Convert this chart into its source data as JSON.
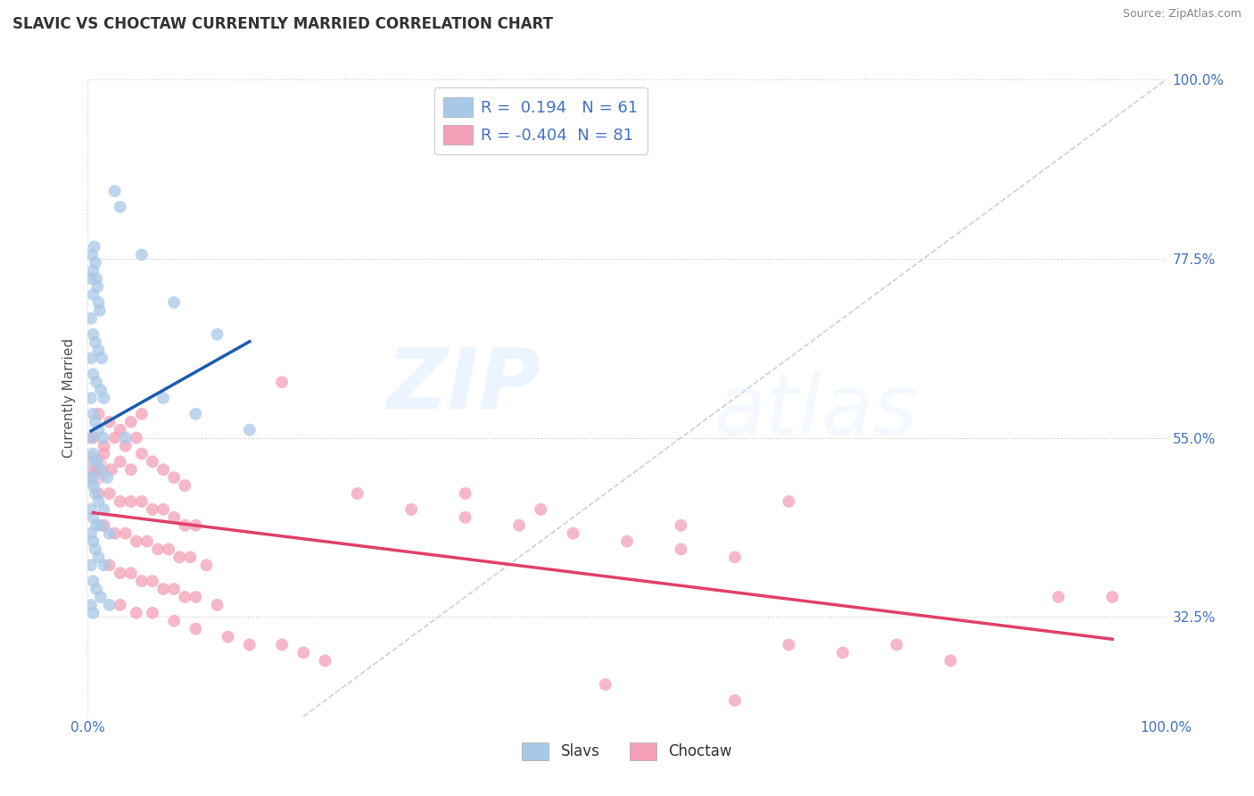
{
  "title": "SLAVIC VS CHOCTAW CURRENTLY MARRIED CORRELATION CHART",
  "source": "Source: ZipAtlas.com",
  "ylabel": "Currently Married",
  "xlim": [
    0.0,
    100.0
  ],
  "ylim": [
    20.0,
    100.0
  ],
  "ytick_values": [
    32.5,
    55.0,
    77.5,
    100.0
  ],
  "xtick_values": [
    0.0,
    100.0
  ],
  "slavs_R": 0.194,
  "slavs_N": 61,
  "choctaw_R": -0.404,
  "choctaw_N": 81,
  "slavs_color": "#a8c8e8",
  "choctaw_color": "#f4a0b8",
  "slavs_line_color": "#1a5cb0",
  "choctaw_line_color": "#e0406a",
  "diagonal_color": "#bbbbbb",
  "background_color": "#ffffff",
  "watermark_zip": "ZIP",
  "watermark_atlas": "atlas",
  "slavs_points": [
    [
      0.3,
      75.0
    ],
    [
      0.4,
      78.0
    ],
    [
      0.5,
      76.0
    ],
    [
      0.5,
      73.0
    ],
    [
      0.6,
      79.0
    ],
    [
      0.7,
      77.0
    ],
    [
      0.8,
      75.0
    ],
    [
      0.9,
      74.0
    ],
    [
      1.0,
      72.0
    ],
    [
      1.1,
      71.0
    ],
    [
      0.3,
      70.0
    ],
    [
      0.5,
      68.0
    ],
    [
      0.7,
      67.0
    ],
    [
      1.0,
      66.0
    ],
    [
      1.3,
      65.0
    ],
    [
      0.3,
      65.0
    ],
    [
      0.5,
      63.0
    ],
    [
      0.8,
      62.0
    ],
    [
      1.2,
      61.0
    ],
    [
      1.5,
      60.0
    ],
    [
      0.3,
      60.0
    ],
    [
      0.5,
      58.0
    ],
    [
      0.7,
      57.0
    ],
    [
      1.0,
      56.0
    ],
    [
      1.4,
      55.0
    ],
    [
      0.3,
      55.0
    ],
    [
      0.5,
      53.0
    ],
    [
      0.8,
      52.0
    ],
    [
      1.2,
      51.0
    ],
    [
      1.8,
      50.0
    ],
    [
      0.3,
      50.0
    ],
    [
      0.5,
      49.0
    ],
    [
      0.7,
      48.0
    ],
    [
      1.0,
      47.0
    ],
    [
      1.5,
      46.0
    ],
    [
      0.3,
      46.0
    ],
    [
      0.5,
      45.0
    ],
    [
      0.8,
      44.0
    ],
    [
      1.2,
      44.0
    ],
    [
      2.0,
      43.0
    ],
    [
      0.3,
      43.0
    ],
    [
      0.5,
      42.0
    ],
    [
      0.7,
      41.0
    ],
    [
      1.0,
      40.0
    ],
    [
      1.5,
      39.0
    ],
    [
      0.3,
      39.0
    ],
    [
      0.5,
      37.0
    ],
    [
      0.8,
      36.0
    ],
    [
      1.2,
      35.0
    ],
    [
      2.0,
      34.0
    ],
    [
      0.3,
      34.0
    ],
    [
      0.5,
      33.0
    ],
    [
      2.5,
      86.0
    ],
    [
      3.0,
      84.0
    ],
    [
      5.0,
      78.0
    ],
    [
      8.0,
      72.0
    ],
    [
      12.0,
      68.0
    ],
    [
      3.5,
      55.0
    ],
    [
      7.0,
      60.0
    ],
    [
      10.0,
      58.0
    ],
    [
      15.0,
      56.0
    ]
  ],
  "choctaw_points": [
    [
      0.5,
      55.0
    ],
    [
      1.0,
      58.0
    ],
    [
      1.5,
      54.0
    ],
    [
      2.0,
      57.0
    ],
    [
      2.5,
      55.0
    ],
    [
      3.0,
      56.0
    ],
    [
      3.5,
      54.0
    ],
    [
      4.0,
      57.0
    ],
    [
      4.5,
      55.0
    ],
    [
      5.0,
      58.0
    ],
    [
      0.8,
      51.0
    ],
    [
      1.5,
      53.0
    ],
    [
      2.2,
      51.0
    ],
    [
      3.0,
      52.0
    ],
    [
      4.0,
      51.0
    ],
    [
      5.0,
      53.0
    ],
    [
      6.0,
      52.0
    ],
    [
      7.0,
      51.0
    ],
    [
      8.0,
      50.0
    ],
    [
      9.0,
      49.0
    ],
    [
      1.0,
      48.0
    ],
    [
      2.0,
      48.0
    ],
    [
      3.0,
      47.0
    ],
    [
      4.0,
      47.0
    ],
    [
      5.0,
      47.0
    ],
    [
      6.0,
      46.0
    ],
    [
      7.0,
      46.0
    ],
    [
      8.0,
      45.0
    ],
    [
      9.0,
      44.0
    ],
    [
      10.0,
      44.0
    ],
    [
      1.5,
      44.0
    ],
    [
      2.5,
      43.0
    ],
    [
      3.5,
      43.0
    ],
    [
      4.5,
      42.0
    ],
    [
      5.5,
      42.0
    ],
    [
      6.5,
      41.0
    ],
    [
      7.5,
      41.0
    ],
    [
      8.5,
      40.0
    ],
    [
      9.5,
      40.0
    ],
    [
      11.0,
      39.0
    ],
    [
      2.0,
      39.0
    ],
    [
      3.0,
      38.0
    ],
    [
      4.0,
      38.0
    ],
    [
      5.0,
      37.0
    ],
    [
      6.0,
      37.0
    ],
    [
      7.0,
      36.0
    ],
    [
      8.0,
      36.0
    ],
    [
      9.0,
      35.0
    ],
    [
      10.0,
      35.0
    ],
    [
      12.0,
      34.0
    ],
    [
      3.0,
      34.0
    ],
    [
      4.5,
      33.0
    ],
    [
      6.0,
      33.0
    ],
    [
      8.0,
      32.0
    ],
    [
      10.0,
      31.0
    ],
    [
      13.0,
      30.0
    ],
    [
      15.0,
      29.0
    ],
    [
      18.0,
      29.0
    ],
    [
      20.0,
      28.0
    ],
    [
      22.0,
      27.0
    ],
    [
      18.0,
      62.0
    ],
    [
      25.0,
      48.0
    ],
    [
      30.0,
      46.0
    ],
    [
      35.0,
      45.0
    ],
    [
      40.0,
      44.0
    ],
    [
      45.0,
      43.0
    ],
    [
      50.0,
      42.0
    ],
    [
      55.0,
      41.0
    ],
    [
      60.0,
      40.0
    ],
    [
      65.0,
      47.0
    ],
    [
      35.0,
      48.0
    ],
    [
      42.0,
      46.0
    ],
    [
      55.0,
      44.0
    ],
    [
      70.0,
      28.0
    ],
    [
      80.0,
      27.0
    ],
    [
      65.0,
      29.0
    ],
    [
      75.0,
      29.0
    ],
    [
      48.0,
      24.0
    ],
    [
      60.0,
      22.0
    ],
    [
      90.0,
      35.0
    ],
    [
      95.0,
      35.0
    ]
  ],
  "slavs_marker_size": 100,
  "choctaw_marker_size": 100,
  "big_cluster_x": 0.3,
  "big_cluster_y": 51.0,
  "big_cluster_size": 800
}
